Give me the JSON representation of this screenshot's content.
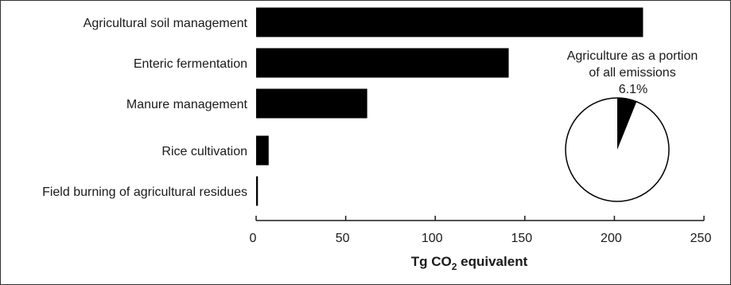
{
  "chart_data": {
    "type": "bar",
    "orientation": "horizontal",
    "categories": [
      "Agricultural soil management",
      "Enteric fermentation",
      "Manure management",
      "Rice cultivation",
      "Field burning of agricultural residues"
    ],
    "values": [
      216,
      141,
      62,
      7,
      1
    ],
    "xlabel_main": "Tg CO",
    "xlabel_sub": "2",
    "xlabel_tail": " equivalent",
    "xlim": [
      0,
      250
    ],
    "xticks": [
      "0",
      "50",
      "100",
      "150",
      "200",
      "250"
    ],
    "xtick_values": [
      0,
      50,
      100,
      150,
      200,
      250
    ],
    "bar_color": "#000000",
    "grid": false,
    "inset_pie": {
      "title_line1": "Agriculture as a portion",
      "title_line2": "of all emissions",
      "slice_label": "6.1%",
      "slice_value": 6.1,
      "slice_color": "#000000",
      "rest_color": "#ffffff"
    }
  }
}
